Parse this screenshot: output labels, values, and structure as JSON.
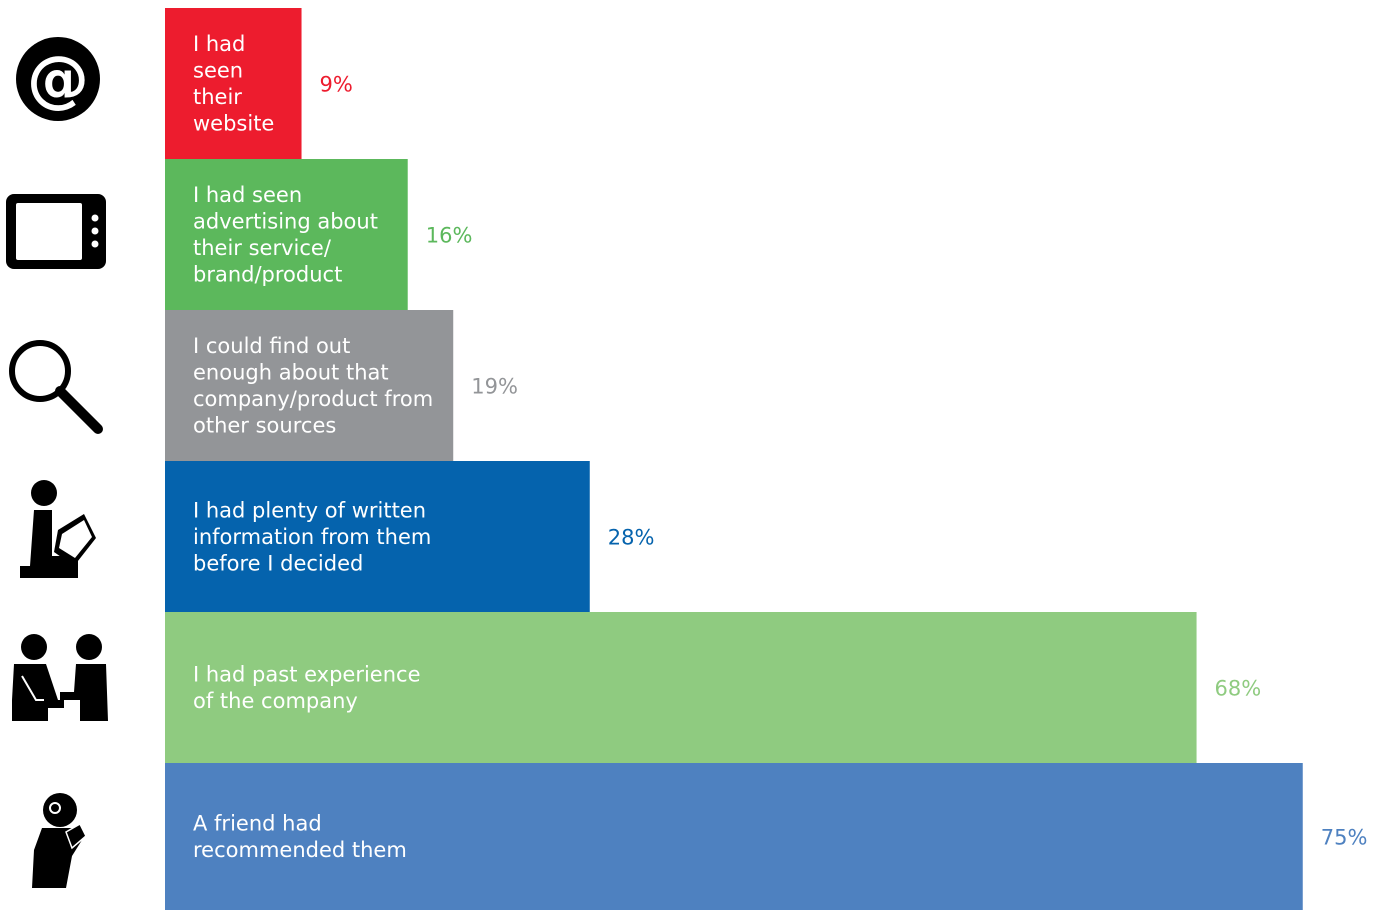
{
  "chart_data": {
    "type": "bar",
    "orientation": "horizontal",
    "grid": false,
    "xlim": [
      0,
      75
    ],
    "categories": [
      "I had seen their website",
      "I had seen advertising about their service/ brand/product",
      "I could find out enough about that company/product from other sources",
      "I had plenty of written information from them before I decided",
      "I had past experience of the company",
      "A friend had recommended them"
    ],
    "category_lines": [
      [
        "I had",
        "seen",
        "their",
        "website"
      ],
      [
        "I had seen",
        "advertising about",
        "their service/",
        "brand/product"
      ],
      [
        "I could find out",
        "enough about that",
        "company/product from",
        "other sources"
      ],
      [
        "I had plenty of written",
        "information from them",
        "before I decided"
      ],
      [
        "I had past experience",
        "of the company"
      ],
      [
        "A friend had",
        "recommended them"
      ]
    ],
    "values": [
      9,
      16,
      19,
      28,
      68,
      75
    ],
    "value_labels": [
      "9%",
      "16%",
      "19%",
      "28%",
      "68%",
      "75%"
    ],
    "colors": [
      "#ed1c2e",
      "#5cb85c",
      "#939598",
      "#0563ad",
      "#8fcb80",
      "#4e81c0"
    ],
    "value_label_colors": [
      "#ed1c2e",
      "#5cb85c",
      "#939598",
      "#0563ad",
      "#8fcb80",
      "#4e81c0"
    ],
    "icons": [
      "at-sign-icon",
      "tablet-icon",
      "magnifier-icon",
      "person-reading-icon",
      "two-people-meeting-icon",
      "person-listening-icon"
    ],
    "icon_color": "#000000"
  }
}
